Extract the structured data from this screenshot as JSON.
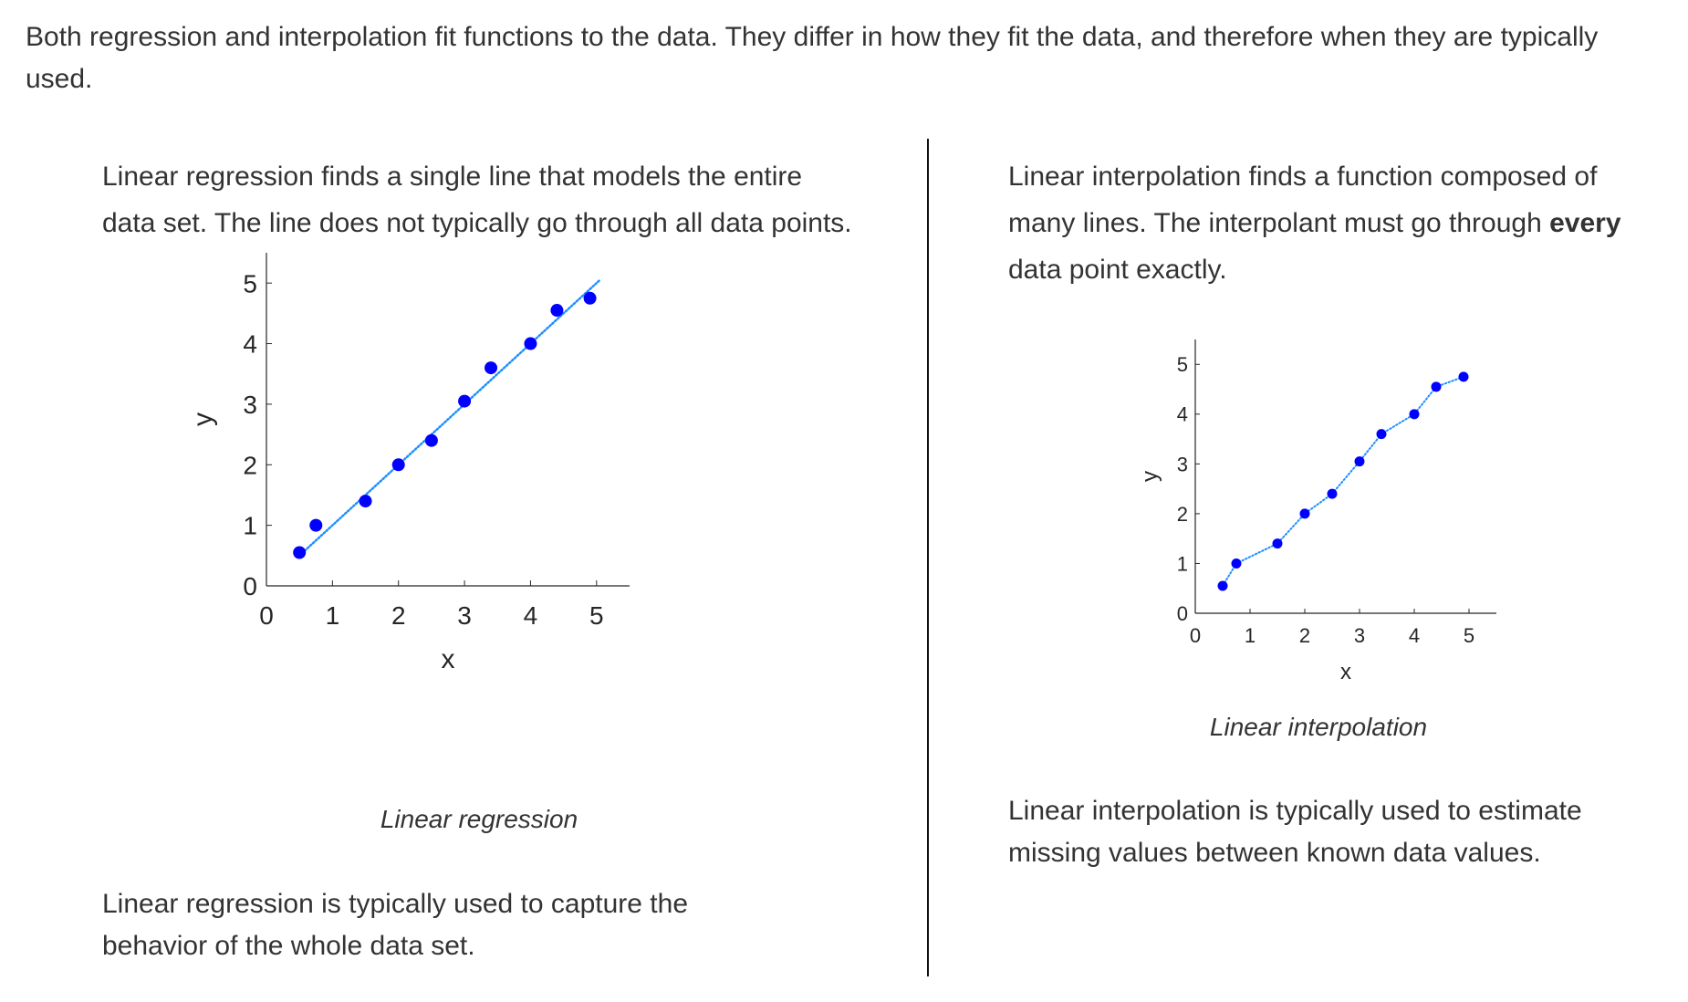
{
  "intro": "Both regression and interpolation fit functions to the data. They differ in how they fit the data, and therefore when they are typically used.",
  "left": {
    "desc": "Linear regression finds a single line that models the entire data set. The line does not typically go through all data points.",
    "caption": "Linear regression",
    "usage": "Linear regression is typically used to capture the behavior of the whole data set."
  },
  "right": {
    "desc_bold": "every",
    "desc_pre": "Linear interpolation finds a function composed of many lines. The interpolant must go through ",
    "desc_post": " data point exactly.",
    "caption": "Linear interpolation",
    "usage": "Linear interpolation is typically used to estimate missing values between known data values."
  },
  "chart_data": [
    {
      "type": "scatter",
      "title": "",
      "xlabel": "x",
      "ylabel": "y",
      "xlim": [
        0,
        5.5
      ],
      "ylim": [
        0,
        5.5
      ],
      "xticks": [
        "0",
        "1",
        "2",
        "3",
        "4",
        "5"
      ],
      "yticks": [
        "0",
        "1",
        "2",
        "3",
        "4",
        "5"
      ],
      "points_x": [
        0.5,
        0.75,
        1.5,
        2.0,
        2.5,
        3.0,
        3.4,
        4.0,
        4.4,
        4.9
      ],
      "points_y": [
        0.55,
        1.0,
        1.4,
        2.0,
        2.4,
        3.05,
        3.6,
        4.0,
        4.55,
        4.75
      ],
      "fit_line": {
        "x": [
          0.5,
          5.05
        ],
        "y": [
          0.5,
          5.05
        ],
        "style": "dotted",
        "color": "#1f8fff"
      },
      "marker_color": "#0000ff"
    },
    {
      "type": "line",
      "title": "",
      "xlabel": "x",
      "ylabel": "y",
      "xlim": [
        0,
        5.5
      ],
      "ylim": [
        0,
        5.5
      ],
      "xticks": [
        "0",
        "1",
        "2",
        "3",
        "4",
        "5"
      ],
      "yticks": [
        "0",
        "1",
        "2",
        "3",
        "4",
        "5"
      ],
      "points_x": [
        0.5,
        0.75,
        1.5,
        2.0,
        2.5,
        3.0,
        3.4,
        4.0,
        4.4,
        4.9
      ],
      "points_y": [
        0.55,
        1.0,
        1.4,
        2.0,
        2.4,
        3.05,
        3.6,
        4.0,
        4.55,
        4.75
      ],
      "line_style": "dotted",
      "line_color": "#1f8fff",
      "marker_color": "#0000ff"
    }
  ]
}
